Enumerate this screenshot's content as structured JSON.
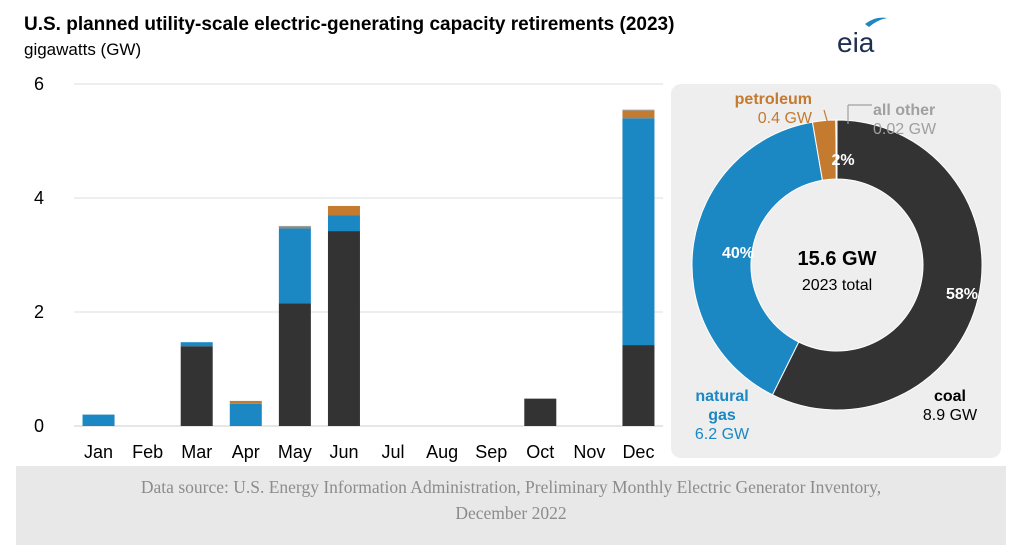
{
  "title": "U.S. planned utility-scale electric-generating capacity retirements (2023)",
  "subtitle": "gigawatts (GW)",
  "logo_text": "eia",
  "source": {
    "line1": "Data source: U.S. Energy Information Administration, Preliminary Monthly Electric Generator Inventory,",
    "line2": "December 2022"
  },
  "colors": {
    "coal": "#333333",
    "natural_gas": "#1b87c3",
    "petroleum": "#c47a2f",
    "all_other": "#a0a0a0",
    "logo": "#1b87c3"
  },
  "chart_data": [
    {
      "type": "bar",
      "stacked": true,
      "categories": [
        "Jan",
        "Feb",
        "Mar",
        "Apr",
        "May",
        "Jun",
        "Jul",
        "Aug",
        "Sep",
        "Oct",
        "Nov",
        "Dec"
      ],
      "series": [
        {
          "key": "coal",
          "values": [
            0,
            0,
            1.4,
            0,
            2.15,
            3.42,
            0,
            0,
            0,
            0.48,
            0,
            1.42
          ]
        },
        {
          "key": "natural_gas",
          "values": [
            0.2,
            0,
            0.07,
            0.39,
            1.32,
            0.28,
            0,
            0,
            0,
            0,
            0,
            3.98
          ]
        },
        {
          "key": "petroleum",
          "values": [
            0,
            0,
            0,
            0.05,
            0.03,
            0.16,
            0,
            0,
            0,
            0,
            0,
            0.14
          ]
        },
        {
          "key": "all_other",
          "values": [
            0,
            0,
            0,
            0,
            0.01,
            0,
            0,
            0,
            0,
            0,
            0,
            0.01
          ]
        }
      ],
      "yticks": [
        0,
        2,
        4,
        6
      ],
      "ylim": [
        0,
        6
      ],
      "grid": true
    },
    {
      "type": "pie",
      "donut": true,
      "center_value": "15.6 GW",
      "center_label": "2023 total",
      "slices": [
        {
          "key": "coal",
          "name_lines": [
            "coal"
          ],
          "value_label": "8.9 GW",
          "value": 8.9,
          "pct_label": "58%"
        },
        {
          "key": "natural_gas",
          "name_lines": [
            "natural",
            "gas"
          ],
          "value_label": "6.2 GW",
          "value": 6.2,
          "pct_label": "40%"
        },
        {
          "key": "petroleum",
          "name_lines": [
            "petroleum"
          ],
          "value_label": "0.4 GW",
          "value": 0.4,
          "pct_label": "2%"
        },
        {
          "key": "all_other",
          "name_lines": [
            "all other"
          ],
          "value_label": "0.02 GW",
          "value": 0.02,
          "pct_label": ""
        }
      ]
    }
  ]
}
